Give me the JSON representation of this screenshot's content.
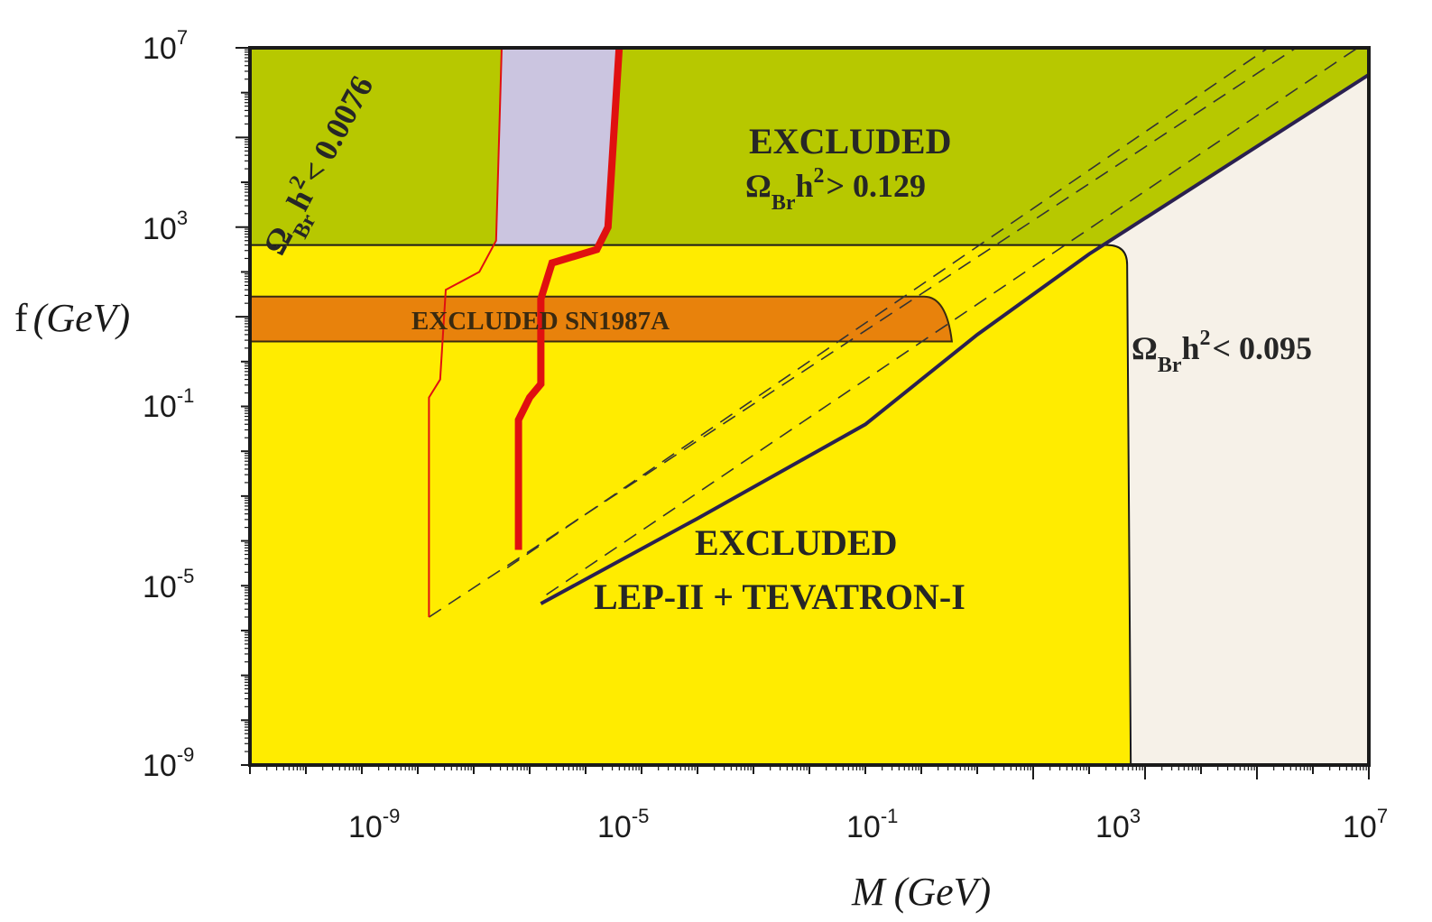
{
  "chart_data": {
    "type": "exclusion-region-plot",
    "x_axis": {
      "label_var": "M",
      "label_unit": "(GeV)",
      "scale": "log",
      "range": [
        1e-13,
        10000000.0
      ],
      "tick_labels": [
        {
          "base": "10",
          "exp": "-9",
          "value": 1e-09
        },
        {
          "base": "10",
          "exp": "-5",
          "value": 1e-05
        },
        {
          "base": "10",
          "exp": "-1",
          "value": 0.1
        },
        {
          "base": "10",
          "exp": "3",
          "value": 1000
        },
        {
          "base": "10",
          "exp": "7",
          "value": 10000000.0
        }
      ]
    },
    "y_axis": {
      "label_var": "f",
      "label_unit": "(GeV)",
      "scale": "log",
      "range": [
        1e-09,
        10000000.0
      ],
      "tick_labels": [
        {
          "base": "10",
          "exp": "-9",
          "value": 1e-09
        },
        {
          "base": "10",
          "exp": "-5",
          "value": 1e-05
        },
        {
          "base": "10",
          "exp": "-1",
          "value": 0.1
        },
        {
          "base": "10",
          "exp": "3",
          "value": 1000
        },
        {
          "base": "10",
          "exp": "7",
          "value": 10000000.0
        }
      ]
    },
    "colors": {
      "background": "#f6f1e8",
      "green_excluded": "#b7c800",
      "yellow_excluded": "#ffec00",
      "orange_sn": "#e8820c",
      "lavender_band": "#cbc5e0",
      "red_line": "#e01010",
      "dark_boundary": "#2a2050"
    },
    "regions": [
      {
        "name": "relic-overabundance",
        "text_line1": "EXCLUDED",
        "omega": "Ω",
        "omega_sub": "Br",
        "rest": "h",
        "rest_sup": "2",
        "rest_tail": "> 0.129",
        "boundary": "y > 10^2.6 (lower edge) and y > x - 0.6 (diagonal)"
      },
      {
        "name": "collider",
        "text_line1": "EXCLUDED",
        "text_line2": "LEP-II + TEVATRON-I",
        "x_max_log": 2.7,
        "y_max_log": 2.6
      },
      {
        "name": "supernova",
        "text": "EXCLUDED SN1987A",
        "y_range_log": [
          1.2,
          2.0
        ],
        "x_max_log": -0.5
      }
    ],
    "boundary_labels": {
      "upper_left": {
        "omega": "Ω",
        "omega_sub": "Br",
        "h": "h",
        "sup": "2",
        "tail": "< 0.0076"
      },
      "right": {
        "omega": "Ω",
        "omega_sub": "Br",
        "h": "h",
        "sup": "2",
        "tail": "< 0.095"
      }
    },
    "curves": {
      "thin_red": [
        [
          -9.8,
          -5.7
        ],
        [
          -9.8,
          -0.8
        ],
        [
          -9.6,
          -0.4
        ],
        [
          -9.5,
          1.6
        ],
        [
          -8.9,
          2.0
        ],
        [
          -8.6,
          2.7
        ],
        [
          -8.5,
          7
        ]
      ],
      "thick_red": [
        [
          -8.2,
          -4.2
        ],
        [
          -8.2,
          -1.3
        ],
        [
          -8.0,
          -0.8
        ],
        [
          -7.8,
          -0.5
        ],
        [
          -7.8,
          1.4
        ],
        [
          -7.6,
          2.2
        ],
        [
          -6.8,
          2.5
        ],
        [
          -6.6,
          3.0
        ],
        [
          -6.4,
          7
        ]
      ],
      "dark_line": [
        [
          -7.8,
          -5.4
        ],
        [
          -5.0,
          -3.5
        ],
        [
          -2.0,
          -1.4
        ],
        [
          0.0,
          0.6
        ],
        [
          2.0,
          2.4
        ],
        [
          7.0,
          6.4
        ]
      ],
      "dashed_1": [
        [
          -9.8,
          -5.7
        ],
        [
          5.7,
          7.0
        ]
      ],
      "dashed_2": [
        [
          -7.7,
          -5.2
        ],
        [
          6.8,
          7.0
        ]
      ],
      "dashed_3": [
        [
          -8.4,
          -4.6
        ],
        [
          5.2,
          7.0
        ]
      ]
    }
  }
}
